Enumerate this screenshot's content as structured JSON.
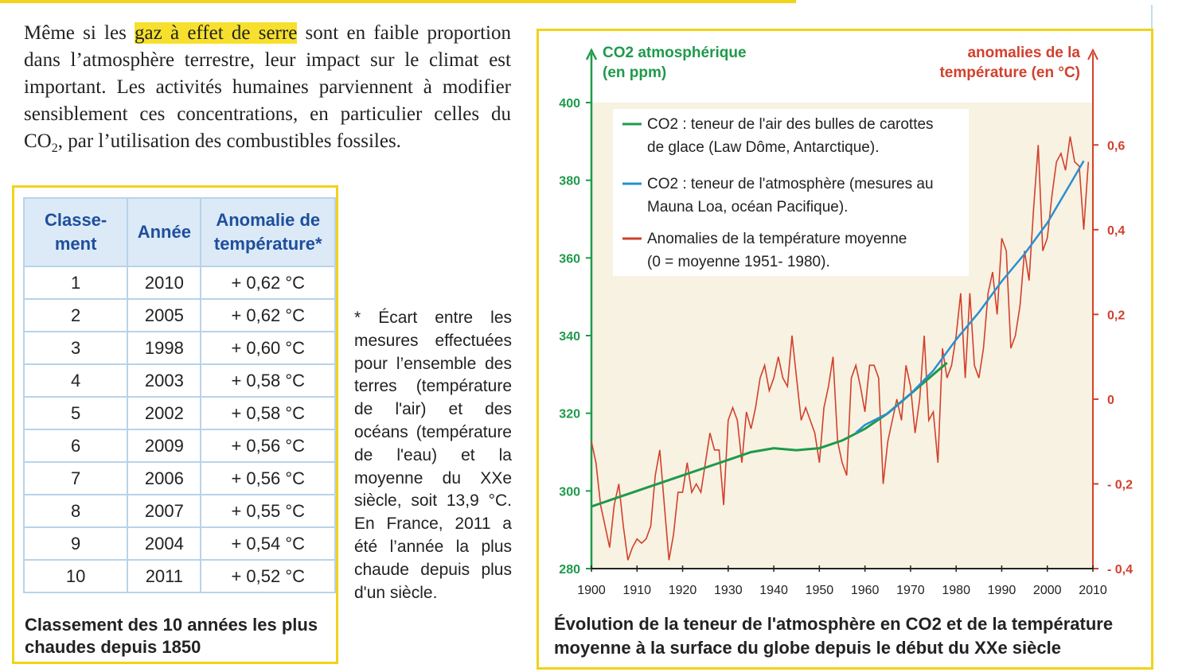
{
  "intro": {
    "before": "Même si les ",
    "highlight": "gaz à effet de serre",
    "after_1": " sont en faible proportion dans l’atmosphère terrestre, leur impact sur le climat est important. Les activités humaines parviennent à modifier sensiblement ces concentrations, en particulier celles du CO",
    "sub": "2",
    "after_2": ", par l’utilisation des combustibles fossiles."
  },
  "ranking_table": {
    "headers": [
      "Classe-ment",
      "Année",
      "Anomalie de température*"
    ],
    "rows": [
      [
        "1",
        "2010",
        "+ 0,62 °C"
      ],
      [
        "2",
        "2005",
        "+ 0,62 °C"
      ],
      [
        "3",
        "1998",
        "+ 0,60 °C"
      ],
      [
        "4",
        "2003",
        "+ 0,58 °C"
      ],
      [
        "5",
        "2002",
        "+ 0,58 °C"
      ],
      [
        "6",
        "2009",
        "+ 0,56 °C"
      ],
      [
        "7",
        "2006",
        "+ 0,56 °C"
      ],
      [
        "8",
        "2007",
        "+ 0,55 °C"
      ],
      [
        "9",
        "2004",
        "+ 0,54 °C"
      ],
      [
        "10",
        "2011",
        "+ 0,52 °C"
      ]
    ],
    "caption": "Classement des 10 années les plus chaudes depuis 1850"
  },
  "footnote": "* Écart entre les mesures effectuées pour l’ensemble des terres (température de l'air) et des océans (température de l'eau) et la moyenne du XXe siècle, soit 13,9 °C. En France, 2011 a été l’année la plus chaude depuis plus d'un siècle.",
  "colors": {
    "accent_yellow": "#f2d21a",
    "co2_green": "#1e9a4b",
    "co2_blue": "#2a8fd0",
    "temp_red": "#d2402d",
    "plot_bg": "#f8f2e2",
    "table_header": "#dbeaf6"
  },
  "chart_caption": "Évolution de la teneur de l'atmosphère en CO2 et de la température moyenne à la surface du globe depuis le début du XXe siècle",
  "chart_data": {
    "type": "line",
    "left_axis": {
      "title_line1": "CO2 atmosphérique",
      "title_line2": "(en ppm)",
      "range": [
        280,
        400
      ],
      "ticks": [
        "400",
        "380",
        "360",
        "340",
        "320",
        "300",
        "280"
      ]
    },
    "right_axis": {
      "title_line1": "anomalies de la",
      "title_line2": "température (en °C)",
      "range": [
        -0.4,
        0.7
      ],
      "ticks": [
        "0,6",
        "0,4",
        "0,2",
        "0",
        "- 0,2",
        "- 0,4"
      ]
    },
    "x_axis": {
      "range": [
        1900,
        2010
      ],
      "ticks": [
        "1900",
        "1910",
        "1920",
        "1930",
        "1940",
        "1950",
        "1960",
        "1970",
        "1980",
        "1990",
        "2000",
        "2010"
      ]
    },
    "legend": [
      {
        "label_line1": "CO2 : teneur de l'air des bulles de carottes",
        "label_line2": "de glace (Law Dôme, Antarctique)."
      },
      {
        "label_line1": "CO2 : teneur de l'atmosphère (mesures au",
        "label_line2": "Mauna Loa, océan Pacifique)."
      },
      {
        "label_line1": "Anomalies de la température moyenne",
        "label_line2": "(0 = moyenne 1951- 1980)."
      }
    ],
    "legend_position": "top-left",
    "series": [
      {
        "name": "CO2 : teneur de l'air des bulles de carottes de glace (Law Dôme, Antarctique).",
        "axis": "left",
        "x": [
          1900,
          1905,
          1910,
          1915,
          1920,
          1925,
          1930,
          1935,
          1940,
          1945,
          1950,
          1955,
          1960,
          1965,
          1970,
          1975,
          1978
        ],
        "y": [
          296,
          298,
          300,
          302,
          304,
          306,
          308,
          310,
          311,
          310.5,
          311,
          313,
          316,
          320,
          325,
          330,
          333
        ]
      },
      {
        "name": "CO2 : teneur de l'atmosphère (mesures au Mauna Loa, océan Pacifique).",
        "axis": "left",
        "x": [
          1958,
          1960,
          1965,
          1970,
          1975,
          1980,
          1985,
          1990,
          1995,
          2000,
          2005,
          2008
        ],
        "y": [
          315,
          317,
          320,
          325,
          331,
          339,
          346,
          354,
          361,
          369,
          379,
          385
        ]
      },
      {
        "name": "Anomalies de la température moyenne (0 = moyenne 1951- 1980).",
        "axis": "right",
        "x": [
          1900,
          1901,
          1902,
          1903,
          1904,
          1905,
          1906,
          1907,
          1908,
          1909,
          1910,
          1911,
          1912,
          1913,
          1914,
          1915,
          1916,
          1917,
          1918,
          1919,
          1920,
          1921,
          1922,
          1923,
          1924,
          1925,
          1926,
          1927,
          1928,
          1929,
          1930,
          1931,
          1932,
          1933,
          1934,
          1935,
          1936,
          1937,
          1938,
          1939,
          1940,
          1941,
          1942,
          1943,
          1944,
          1945,
          1946,
          1947,
          1948,
          1949,
          1950,
          1951,
          1952,
          1953,
          1954,
          1955,
          1956,
          1957,
          1958,
          1959,
          1960,
          1961,
          1962,
          1963,
          1964,
          1965,
          1966,
          1967,
          1968,
          1969,
          1970,
          1971,
          1972,
          1973,
          1974,
          1975,
          1976,
          1977,
          1978,
          1979,
          1980,
          1981,
          1982,
          1983,
          1984,
          1985,
          1986,
          1987,
          1988,
          1989,
          1990,
          1991,
          1992,
          1993,
          1994,
          1995,
          1996,
          1997,
          1998,
          1999,
          2000,
          2001,
          2002,
          2003,
          2004,
          2005,
          2006,
          2007,
          2008,
          2009
        ],
        "y": [
          -0.1,
          -0.15,
          -0.25,
          -0.3,
          -0.35,
          -0.25,
          -0.2,
          -0.3,
          -0.38,
          -0.35,
          -0.33,
          -0.34,
          -0.33,
          -0.3,
          -0.18,
          -0.12,
          -0.25,
          -0.38,
          -0.32,
          -0.22,
          -0.22,
          -0.15,
          -0.22,
          -0.2,
          -0.22,
          -0.15,
          -0.08,
          -0.12,
          -0.12,
          -0.25,
          -0.05,
          -0.02,
          -0.05,
          -0.15,
          -0.03,
          -0.07,
          -0.02,
          0.05,
          0.08,
          0.02,
          0.05,
          0.1,
          0.05,
          0.03,
          0.15,
          0.05,
          -0.05,
          -0.02,
          -0.05,
          -0.08,
          -0.15,
          -0.02,
          0.03,
          0.1,
          -0.1,
          -0.15,
          -0.18,
          0.05,
          0.08,
          0.03,
          -0.03,
          0.08,
          0.08,
          0.05,
          -0.2,
          -0.1,
          -0.05,
          0.0,
          -0.05,
          0.08,
          0.03,
          -0.08,
          0.0,
          0.15,
          -0.05,
          -0.03,
          -0.15,
          0.12,
          0.05,
          0.08,
          0.15,
          0.25,
          0.05,
          0.25,
          0.08,
          0.05,
          0.12,
          0.25,
          0.3,
          0.2,
          0.38,
          0.35,
          0.12,
          0.15,
          0.22,
          0.35,
          0.28,
          0.45,
          0.6,
          0.35,
          0.38,
          0.48,
          0.56,
          0.58,
          0.54,
          0.62,
          0.56,
          0.55,
          0.4,
          0.56
        ]
      }
    ]
  }
}
